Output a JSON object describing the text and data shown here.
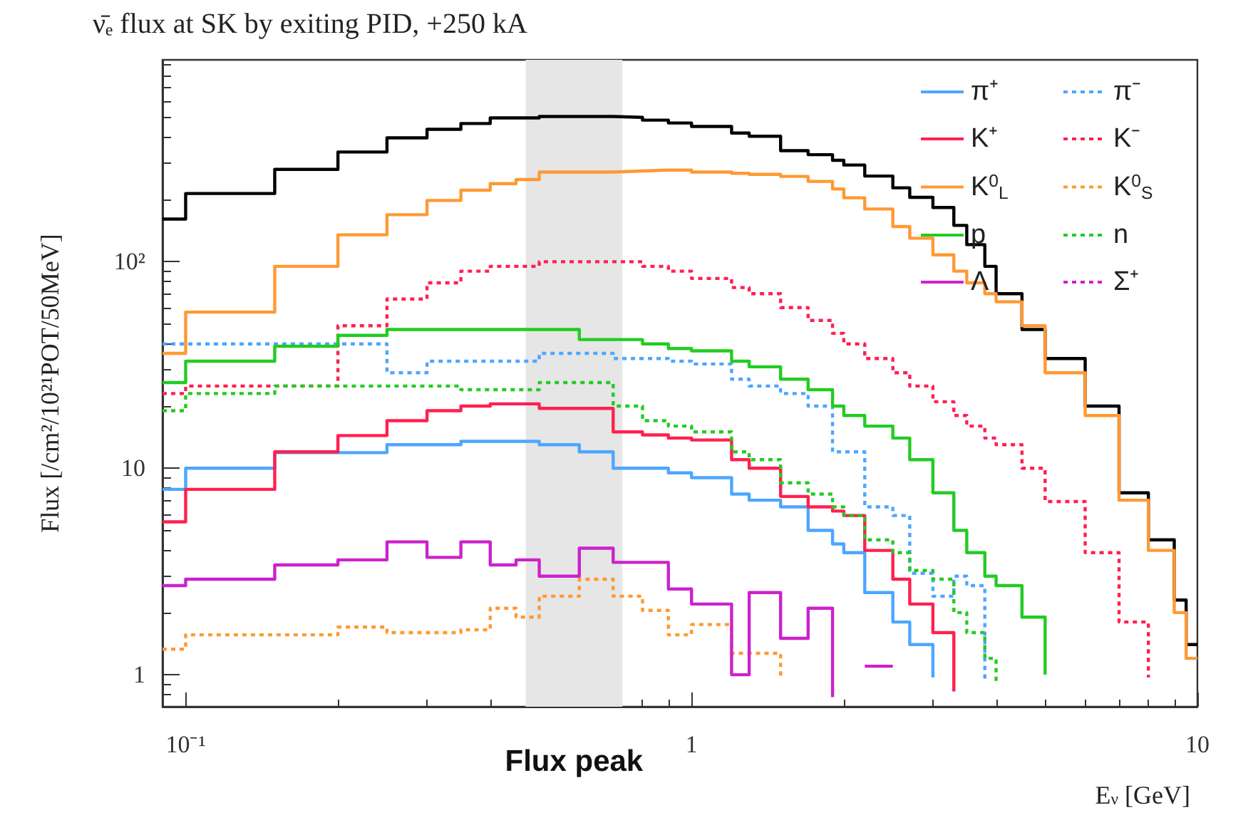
{
  "chart_data": {
    "type": "step",
    "title": "ν̄ₑ flux at SK by exiting PID, +250 kA",
    "xlabel": "E$_{ν}$ [GeV]",
    "ylabel": "Flux [/cm²/10²¹POT/50MeV]",
    "log": "xy",
    "legend": "top right",
    "line_style": "solid",
    "xlim": [
      0.09,
      10
    ],
    "xticks": [
      {
        "value": 0.1,
        "label": "10⁻¹"
      },
      1,
      10
    ],
    "ylim": [
      0.7,
      950
    ],
    "yticks": [
      1,
      10,
      {
        "value": 100,
        "label": "10²"
      }
    ],
    "bands": [
      {
        "axis": "x",
        "from": 0.47,
        "to": 0.73,
        "label": "Flux peak",
        "color": "#e6e6e6"
      }
    ],
    "x": [
      0.09,
      0.1,
      0.15,
      0.2,
      0.25,
      0.3,
      0.35,
      0.4,
      0.45,
      0.5,
      0.6,
      0.7,
      0.8,
      0.9,
      1,
      1.2,
      1.3,
      1.5,
      1.7,
      1.9,
      2,
      2.2,
      2.5,
      2.7,
      3,
      3.3,
      3.5,
      3.8,
      4,
      4.5,
      5,
      6,
      7,
      8,
      9,
      9.5,
      10
    ],
    "series": [
      {
        "color": "#000000",
        "values": [
          161,
          214,
          280,
          340,
          398,
          438,
          467,
          497,
          497,
          505,
          505,
          500,
          485,
          470,
          452,
          420,
          405,
          345,
          330,
          310,
          294,
          260,
          228,
          205,
          183,
          150,
          121,
          95,
          70,
          47,
          34,
          20,
          7.6,
          4.5,
          2.3,
          1.4,
          1.4
        ]
      },
      {
        "name": "π⁺",
        "color": "#4da6ff",
        "values": [
          7.9,
          10,
          11.9,
          11.9,
          13,
          13,
          13.5,
          13.5,
          13.5,
          13,
          12,
          10,
          10,
          9.5,
          9,
          7.5,
          7,
          6.5,
          5,
          4.3,
          3.9,
          2.5,
          1.8,
          1.4,
          0.97,
          null,
          null,
          null,
          null,
          null,
          null,
          null,
          null,
          null,
          null,
          null,
          null
        ]
      },
      {
        "name": "π⁻",
        "color": "#4da6ff",
        "line_style": "dotted",
        "values": [
          40,
          40,
          40,
          40,
          29,
          33,
          33,
          33,
          33,
          36,
          36,
          34,
          34,
          33,
          32,
          27,
          25,
          23,
          20,
          12,
          12,
          6.5,
          5.9,
          3.1,
          2.4,
          3,
          2.7,
          0.93,
          null,
          null,
          null,
          null,
          null,
          null,
          null,
          null,
          null
        ]
      },
      {
        "name": "K⁺",
        "color": "#ff2050",
        "values": [
          5.5,
          7.9,
          12,
          14.4,
          17,
          19,
          20,
          20.5,
          20.5,
          19.5,
          19.5,
          15,
          14.5,
          14,
          13.7,
          11,
          10,
          7.3,
          6.5,
          6.2,
          5.9,
          4,
          2.9,
          2.2,
          1.6,
          0.83,
          null,
          null,
          null,
          null,
          null,
          null,
          null,
          null,
          null,
          null,
          null
        ]
      },
      {
        "name": "K⁻",
        "color": "#ff2050",
        "line_style": "dotted",
        "values": [
          23,
          25,
          25,
          49,
          66,
          79,
          90,
          95,
          95,
          100,
          100,
          100,
          95,
          90,
          83,
          75,
          70,
          60,
          52,
          45,
          40,
          34,
          29,
          25,
          21,
          18,
          16,
          14,
          13,
          10,
          6.9,
          3.9,
          1.8,
          0.97,
          null,
          null,
          null
        ]
      },
      {
        "name": "K$^{0}$$_{L}$",
        "color": "#ff9933",
        "values": [
          36,
          57,
          95,
          135,
          169,
          198,
          222,
          239,
          250,
          272,
          272,
          275,
          278,
          278,
          272,
          268,
          265,
          259,
          245,
          225,
          204,
          180,
          148,
          130,
          108,
          90,
          79,
          70,
          64,
          49,
          29,
          18,
          7,
          4,
          2,
          1.2,
          1.2
        ]
      },
      {
        "name": "K$^{0}$$_{S}$",
        "color": "#ff9933",
        "line_style": "dotted",
        "values": [
          1.33,
          1.56,
          1.56,
          1.7,
          1.6,
          1.6,
          1.65,
          2.1,
          1.9,
          2.4,
          2.9,
          2.4,
          2.05,
          1.56,
          1.75,
          1.27,
          1.27,
          0.97,
          null,
          null,
          null,
          null,
          null,
          null,
          null,
          null,
          null,
          null,
          null,
          null,
          null,
          null,
          null,
          null,
          null,
          null,
          null
        ]
      },
      {
        "name": "p",
        "color": "#22cc22",
        "values": [
          26,
          33,
          39,
          44,
          47,
          47,
          47,
          47,
          47,
          47,
          42,
          42,
          40,
          38,
          37,
          33,
          31,
          27,
          24,
          20,
          18,
          16,
          14,
          11,
          7.6,
          5,
          3.9,
          3,
          2.7,
          1.9,
          1,
          null,
          null,
          null,
          null,
          null,
          null
        ]
      },
      {
        "name": "n",
        "color": "#22cc22",
        "line_style": "dotted",
        "values": [
          19,
          23,
          25,
          25,
          25,
          25,
          24,
          24,
          24,
          26,
          26,
          20,
          17,
          16,
          15,
          12,
          11,
          8.5,
          7.5,
          6.5,
          5.9,
          4.5,
          3.9,
          3.2,
          2.9,
          2,
          1.6,
          1.2,
          0.93,
          null,
          null,
          null,
          null,
          null,
          null,
          null,
          null
        ]
      },
      {
        "name": "Λ",
        "color": "#cc22cc",
        "values": [
          2.7,
          2.9,
          3.4,
          3.6,
          4.4,
          3.7,
          4.4,
          3.4,
          3.6,
          3,
          4.1,
          3.5,
          3.5,
          2.6,
          2.2,
          1,
          2.5,
          1.5,
          2.1,
          0.78,
          null,
          1.1,
          1.1,
          null,
          null,
          null,
          null,
          null,
          null,
          null,
          null,
          null,
          null,
          null,
          null,
          null,
          null
        ]
      },
      {
        "name": "Σ⁺",
        "color": "#cc22cc",
        "line_style": "dotted",
        "values": [
          null,
          null,
          null,
          null,
          null,
          null,
          null,
          null,
          null,
          null,
          null,
          null,
          null,
          null,
          null,
          null,
          null,
          null,
          null,
          null,
          null,
          null,
          null,
          null,
          null,
          null,
          null,
          null,
          null,
          null,
          null,
          null,
          null,
          null,
          null,
          null,
          null
        ]
      }
    ]
  }
}
